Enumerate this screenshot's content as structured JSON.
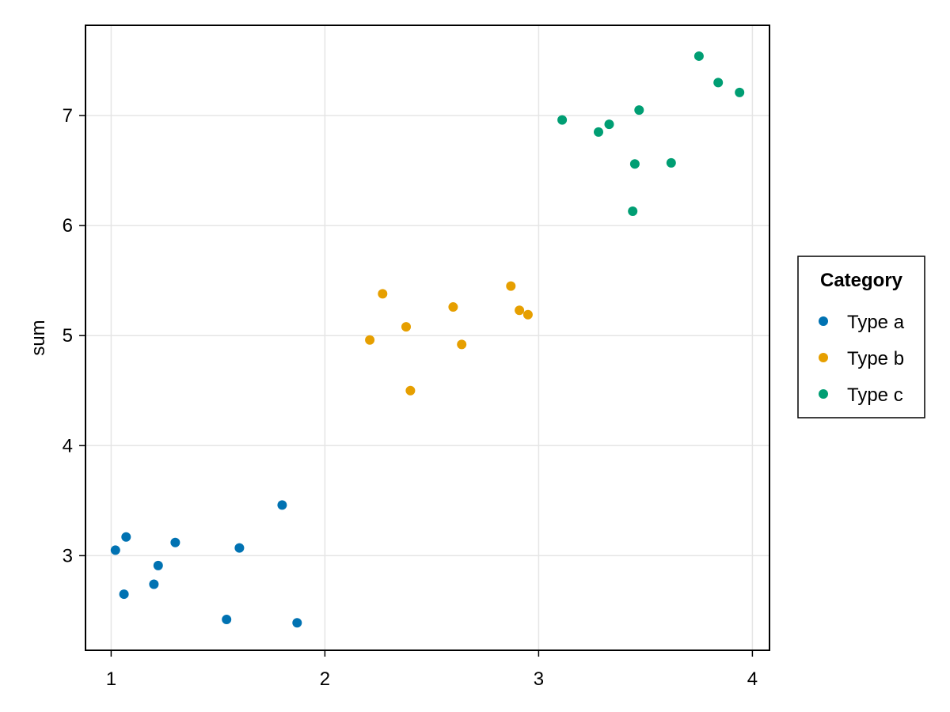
{
  "chart_data": {
    "type": "scatter",
    "title": "",
    "xlabel": "",
    "ylabel": "sum",
    "xlim": [
      0.88,
      4.08
    ],
    "ylim": [
      2.14,
      7.82
    ],
    "xticks": [
      1,
      2,
      3,
      4
    ],
    "yticks": [
      3,
      4,
      5,
      6,
      7
    ],
    "grid": true,
    "legend": {
      "title": "Category",
      "placement": "right"
    },
    "series": [
      {
        "name": "Type a",
        "color": "#0072b2",
        "points": [
          {
            "x": 1.02,
            "y": 3.05
          },
          {
            "x": 1.07,
            "y": 3.17
          },
          {
            "x": 1.06,
            "y": 2.65
          },
          {
            "x": 1.2,
            "y": 2.74
          },
          {
            "x": 1.22,
            "y": 2.91
          },
          {
            "x": 1.3,
            "y": 3.12
          },
          {
            "x": 1.54,
            "y": 2.42
          },
          {
            "x": 1.6,
            "y": 3.07
          },
          {
            "x": 1.8,
            "y": 3.46
          },
          {
            "x": 1.87,
            "y": 2.39
          }
        ]
      },
      {
        "name": "Type b",
        "color": "#e69f00",
        "points": [
          {
            "x": 2.21,
            "y": 4.96
          },
          {
            "x": 2.27,
            "y": 5.38
          },
          {
            "x": 2.38,
            "y": 5.08
          },
          {
            "x": 2.4,
            "y": 4.5
          },
          {
            "x": 2.6,
            "y": 5.26
          },
          {
            "x": 2.64,
            "y": 4.92
          },
          {
            "x": 2.87,
            "y": 5.45
          },
          {
            "x": 2.91,
            "y": 5.23
          },
          {
            "x": 2.95,
            "y": 5.19
          }
        ]
      },
      {
        "name": "Type c",
        "color": "#009e73",
        "points": [
          {
            "x": 3.11,
            "y": 6.96
          },
          {
            "x": 3.28,
            "y": 6.85
          },
          {
            "x": 3.33,
            "y": 6.92
          },
          {
            "x": 3.44,
            "y": 6.13
          },
          {
            "x": 3.45,
            "y": 6.56
          },
          {
            "x": 3.47,
            "y": 7.05
          },
          {
            "x": 3.62,
            "y": 6.57
          },
          {
            "x": 3.75,
            "y": 7.54
          },
          {
            "x": 3.84,
            "y": 7.3
          },
          {
            "x": 3.94,
            "y": 7.21
          }
        ]
      }
    ]
  }
}
